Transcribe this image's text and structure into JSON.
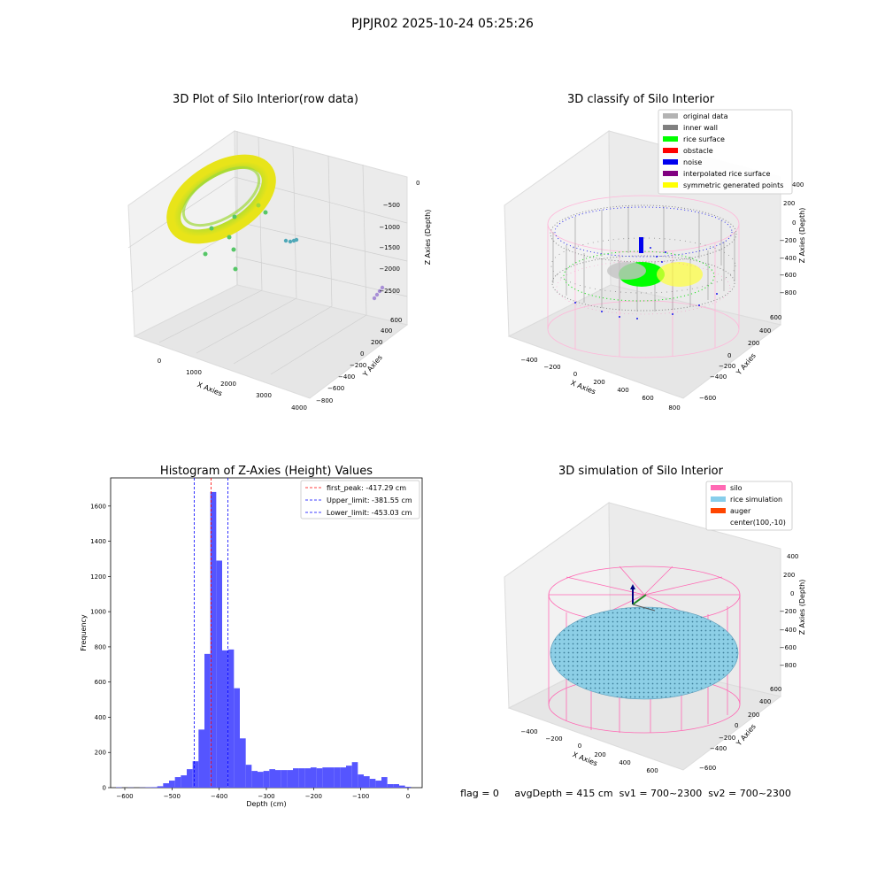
{
  "suptitle": "PJPJR02 2025-10-24 05:25:26",
  "status_line": "flag = 0     avgDepth = 415 cm  sv1 = 700~2300  sv2 = 700~2300",
  "chart_data": [
    {
      "type": "scatter",
      "projection": "3d",
      "title": "3D Plot of Silo Interior(row data)",
      "xlabel": "X Axies",
      "ylabel": "Y Axies",
      "zlabel": "Z Axies (Depth)",
      "xticks": [
        "0",
        "1000",
        "2000",
        "3000",
        "4000"
      ],
      "yticks": [
        "−800",
        "−600",
        "−400",
        "−200",
        "0",
        "200",
        "400",
        "600"
      ],
      "zticks": [
        "−2500",
        "−2000",
        "−1500",
        "−1000",
        "−500",
        "0"
      ],
      "xlim": [
        -400,
        4000
      ],
      "ylim": [
        -850,
        700
      ],
      "zlim": [
        -2700,
        100
      ],
      "colormap": "viridis",
      "grid": true,
      "clusters": [
        {
          "x": 250,
          "y": 500,
          "z": -600,
          "note": "main ring of points"
        }
      ]
    },
    {
      "type": "scatter",
      "projection": "3d",
      "title": "3D classify of Silo Interior",
      "xlabel": "X Axies",
      "ylabel": "Y Axies",
      "zlabel": "Z Axies (Depth)",
      "xticks": [
        "−400",
        "−200",
        "0",
        "200",
        "400",
        "600",
        "800"
      ],
      "yticks": [
        "−600",
        "−400",
        "−200",
        "0",
        "200",
        "400",
        "600"
      ],
      "zticks": [
        "−800",
        "−600",
        "−400",
        "−200",
        "0",
        "200",
        "400"
      ],
      "grid": true,
      "legend_position": "top-right",
      "legend": [
        {
          "label": "original data",
          "color": "#b3b3b3"
        },
        {
          "label": "inner wall",
          "color": "#808080"
        },
        {
          "label": "rice surface",
          "color": "#00ff00"
        },
        {
          "label": "obstacle",
          "color": "#ff0000"
        },
        {
          "label": "noise",
          "color": "#0000ee"
        },
        {
          "label": "interpolated rice surface",
          "color": "#800080"
        },
        {
          "label": "symmetric generated points",
          "color": "#ffff00"
        }
      ]
    },
    {
      "type": "bar",
      "title": "Histogram of Z-Axies (Height) Values",
      "xlabel": "Depth (cm)",
      "ylabel": "Frequency",
      "xlim": [
        -630,
        30
      ],
      "ylim": [
        0,
        1760
      ],
      "xticks": [
        -600,
        -500,
        -400,
        -300,
        -200,
        -100,
        0
      ],
      "xtick_labels": [
        "−600",
        "−500",
        "−400",
        "−300",
        "−200",
        "−100",
        "0"
      ],
      "yticks": [
        0,
        200,
        400,
        600,
        800,
        1000,
        1200,
        1400,
        1600
      ],
      "bar_color": "#5555ff",
      "bin_width": 12.5,
      "bins": [
        {
          "x": -612.5,
          "value": 2
        },
        {
          "x": -600,
          "value": 0
        },
        {
          "x": -587.5,
          "value": 1
        },
        {
          "x": -575,
          "value": 0
        },
        {
          "x": -562.5,
          "value": 1
        },
        {
          "x": -550,
          "value": 2
        },
        {
          "x": -537.5,
          "value": 3
        },
        {
          "x": -525,
          "value": 8
        },
        {
          "x": -512.5,
          "value": 25
        },
        {
          "x": -500,
          "value": 40
        },
        {
          "x": -487.5,
          "value": 60
        },
        {
          "x": -475,
          "value": 70
        },
        {
          "x": -462.5,
          "value": 105
        },
        {
          "x": -450,
          "value": 150
        },
        {
          "x": -437.5,
          "value": 330
        },
        {
          "x": -425,
          "value": 760
        },
        {
          "x": -412.5,
          "value": 1680
        },
        {
          "x": -400,
          "value": 1290
        },
        {
          "x": -387.5,
          "value": 780
        },
        {
          "x": -375,
          "value": 785
        },
        {
          "x": -362.5,
          "value": 565
        },
        {
          "x": -350,
          "value": 280
        },
        {
          "x": -337.5,
          "value": 130
        },
        {
          "x": -325,
          "value": 95
        },
        {
          "x": -312.5,
          "value": 90
        },
        {
          "x": -300,
          "value": 95
        },
        {
          "x": -287.5,
          "value": 105
        },
        {
          "x": -275,
          "value": 100
        },
        {
          "x": -262.5,
          "value": 100
        },
        {
          "x": -250,
          "value": 100
        },
        {
          "x": -237.5,
          "value": 110
        },
        {
          "x": -225,
          "value": 110
        },
        {
          "x": -212.5,
          "value": 110
        },
        {
          "x": -200,
          "value": 115
        },
        {
          "x": -187.5,
          "value": 110
        },
        {
          "x": -175,
          "value": 115
        },
        {
          "x": -162.5,
          "value": 115
        },
        {
          "x": -150,
          "value": 115
        },
        {
          "x": -137.5,
          "value": 115
        },
        {
          "x": -125,
          "value": 125
        },
        {
          "x": -112.5,
          "value": 145
        },
        {
          "x": -100,
          "value": 75
        },
        {
          "x": -87.5,
          "value": 65
        },
        {
          "x": -75,
          "value": 50
        },
        {
          "x": -62.5,
          "value": 40
        },
        {
          "x": -50,
          "value": 60
        },
        {
          "x": -37.5,
          "value": 20
        },
        {
          "x": -25,
          "value": 20
        },
        {
          "x": -12.5,
          "value": 12
        },
        {
          "x": 0,
          "value": 5
        }
      ],
      "vlines": [
        {
          "label": "first_peak: -417.29 cm",
          "x": -417.29,
          "color": "#ff0000"
        },
        {
          "label": "Upper_limit: -381.55 cm",
          "x": -381.55,
          "color": "#0000ff"
        },
        {
          "label": "Lower_limit: -453.03 cm",
          "x": -453.03,
          "color": "#0000ff"
        }
      ],
      "legend_position": "top-right"
    },
    {
      "type": "surface",
      "projection": "3d",
      "title": "3D simulation of Silo Interior",
      "xlabel": "X Axies",
      "ylabel": "Y Axies",
      "zlabel": "Z Axies (Depth)",
      "xticks": [
        "−400",
        "−200",
        "0",
        "200",
        "400",
        "600"
      ],
      "yticks": [
        "−600",
        "−400",
        "−200",
        "0",
        "200",
        "400",
        "600"
      ],
      "zticks": [
        "−800",
        "−600",
        "−400",
        "−200",
        "0",
        "200",
        "400"
      ],
      "grid": true,
      "legend_position": "top-right",
      "legend": [
        {
          "label": "silo",
          "color": "#ff69b4"
        },
        {
          "label": "rice simulation",
          "color": "#87ceeb"
        },
        {
          "label": "auger",
          "color": "#ff4500"
        },
        {
          "label": "center(100,-10)",
          "color": ""
        }
      ]
    }
  ]
}
